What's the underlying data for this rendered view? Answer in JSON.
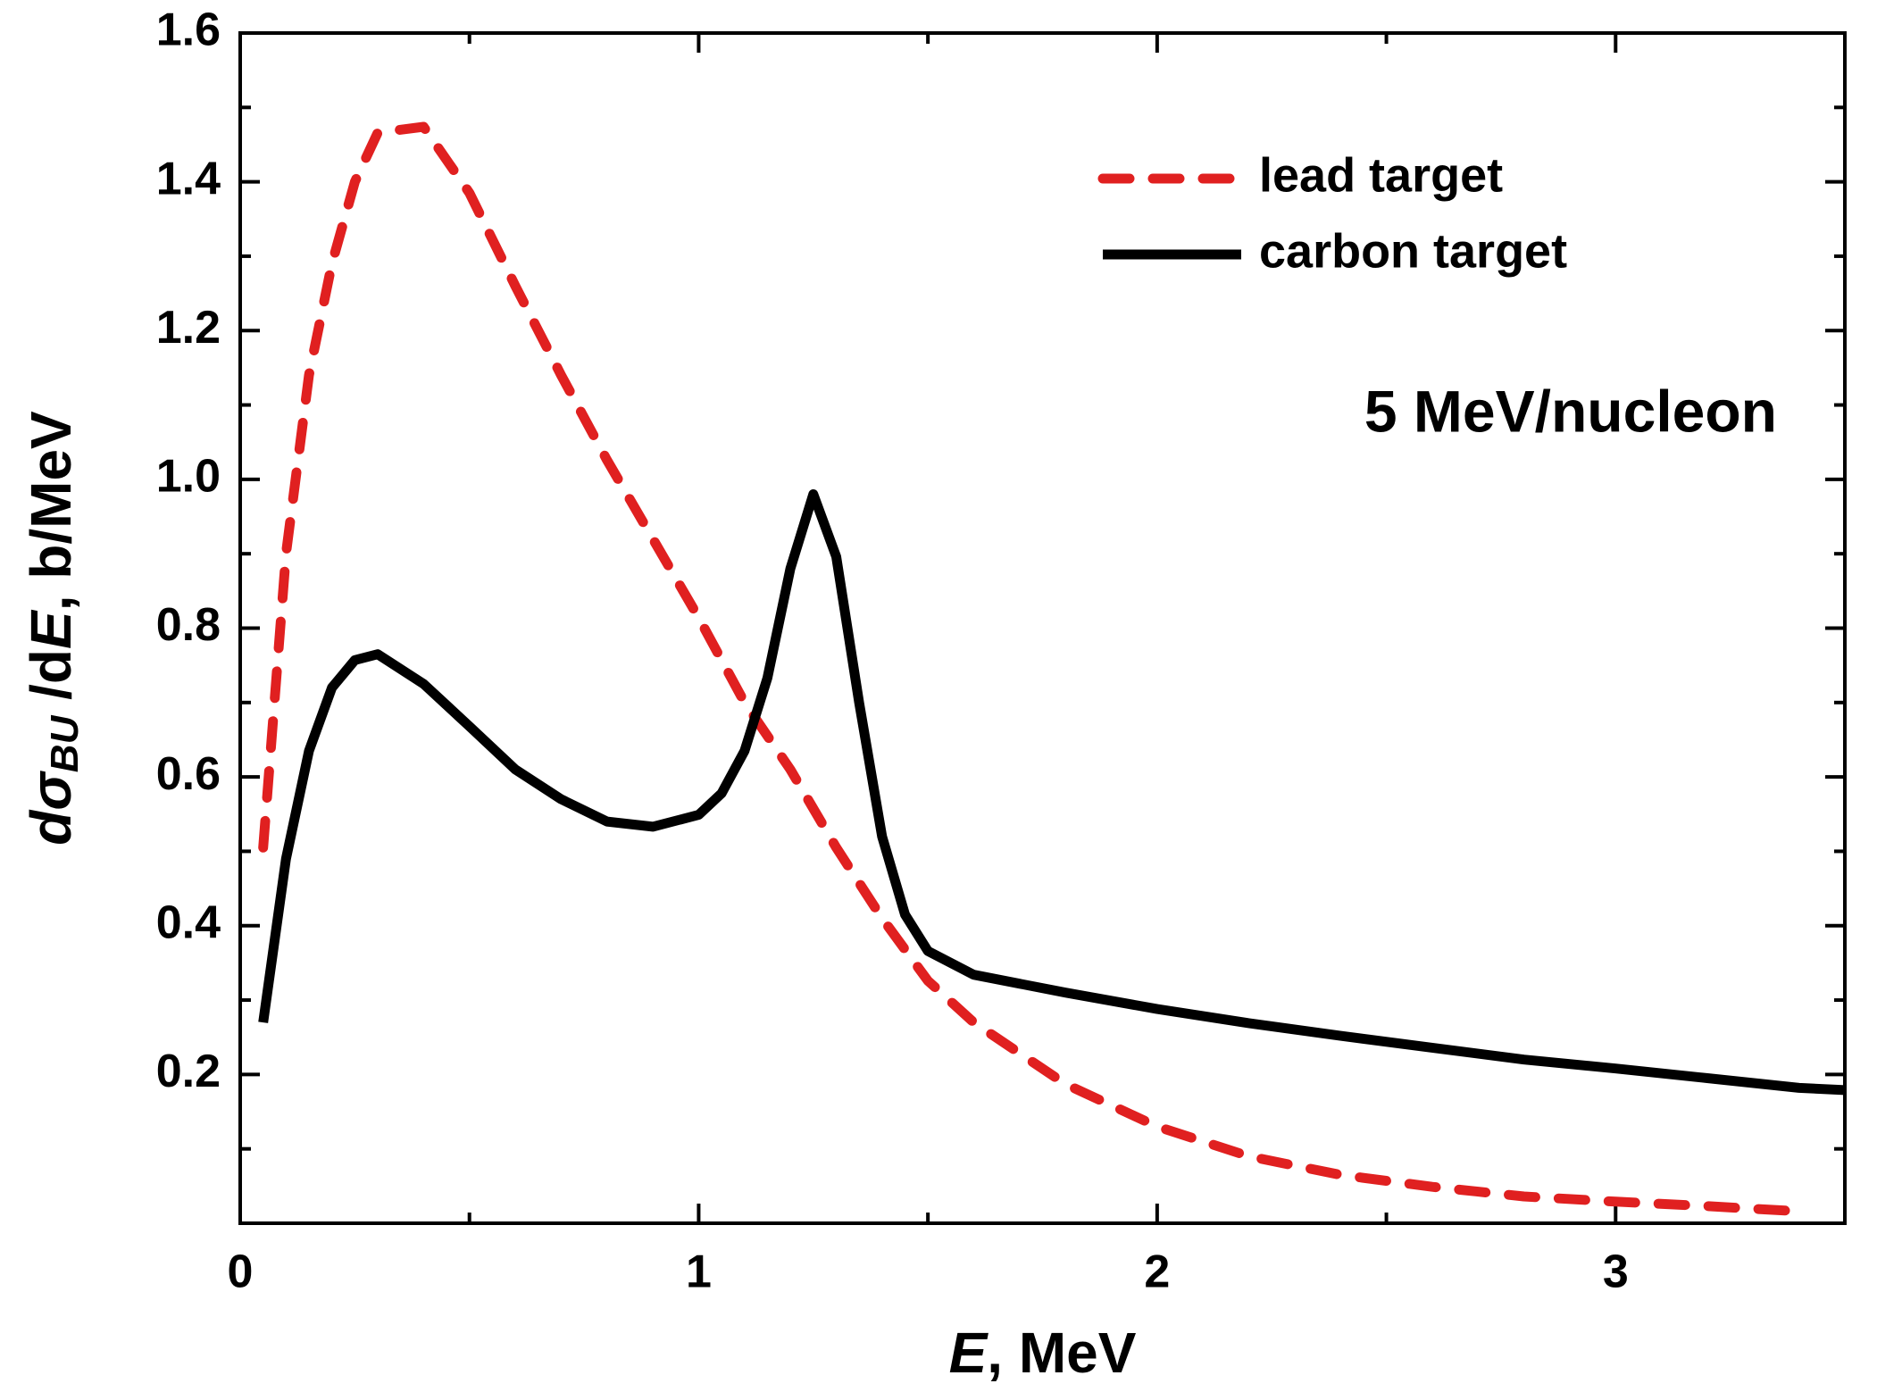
{
  "chart_data": {
    "type": "line",
    "xlabel": [
      "E",
      ", MeV"
    ],
    "ylabel": [
      "d",
      "σ",
      "BU",
      " /d",
      "E",
      ", b/MeV"
    ],
    "annotation": "5 MeV/nucleon",
    "xlim": [
      0,
      3.5
    ],
    "ylim": [
      0,
      1.6
    ],
    "xticks": [
      0,
      1,
      2,
      3
    ],
    "yticks": [
      0.2,
      0.4,
      0.6,
      {
        "value": 0.8,
        "label": "0.8"
      },
      {
        "value": 1.0,
        "label": "1.0"
      },
      1.2,
      1.4,
      1.6
    ],
    "legend": "upper right",
    "series": [
      {
        "name": "lead target",
        "color": "#e02020",
        "dashed": true,
        "x": [
          0.05,
          0.1,
          0.15,
          0.2,
          0.25,
          0.3,
          0.4,
          0.5,
          0.6,
          0.7,
          0.8,
          0.9,
          1.0,
          1.1,
          1.2,
          1.3,
          1.4,
          1.5,
          1.6,
          1.8,
          2.0,
          2.2,
          2.4,
          2.6,
          2.8,
          3.0,
          3.2,
          3.4
        ],
        "values": [
          0.505,
          0.9,
          1.14,
          1.29,
          1.4,
          1.466,
          1.474,
          1.385,
          1.26,
          1.14,
          1.026,
          0.92,
          0.814,
          0.7,
          0.61,
          0.505,
          0.41,
          0.326,
          0.27,
          0.187,
          0.13,
          0.09,
          0.065,
          0.049,
          0.036,
          0.029,
          0.023,
          0.016
        ]
      },
      {
        "name": "carbon target",
        "color": "#000000",
        "dashed": false,
        "x": [
          0.05,
          0.1,
          0.15,
          0.2,
          0.25,
          0.3,
          0.4,
          0.5,
          0.6,
          0.7,
          0.8,
          0.9,
          1.0,
          1.05,
          1.1,
          1.15,
          1.2,
          1.25,
          1.3,
          1.35,
          1.4,
          1.45,
          1.5,
          1.6,
          1.8,
          2.0,
          2.2,
          2.4,
          2.6,
          2.8,
          3.0,
          3.2,
          3.4,
          3.5
        ],
        "values": [
          0.27,
          0.49,
          0.635,
          0.72,
          0.757,
          0.765,
          0.725,
          0.668,
          0.61,
          0.57,
          0.54,
          0.533,
          0.549,
          0.578,
          0.635,
          0.733,
          0.88,
          0.98,
          0.896,
          0.7,
          0.52,
          0.415,
          0.366,
          0.334,
          0.31,
          0.288,
          0.269,
          0.252,
          0.236,
          0.22,
          0.208,
          0.195,
          0.182,
          0.179
        ]
      }
    ]
  }
}
